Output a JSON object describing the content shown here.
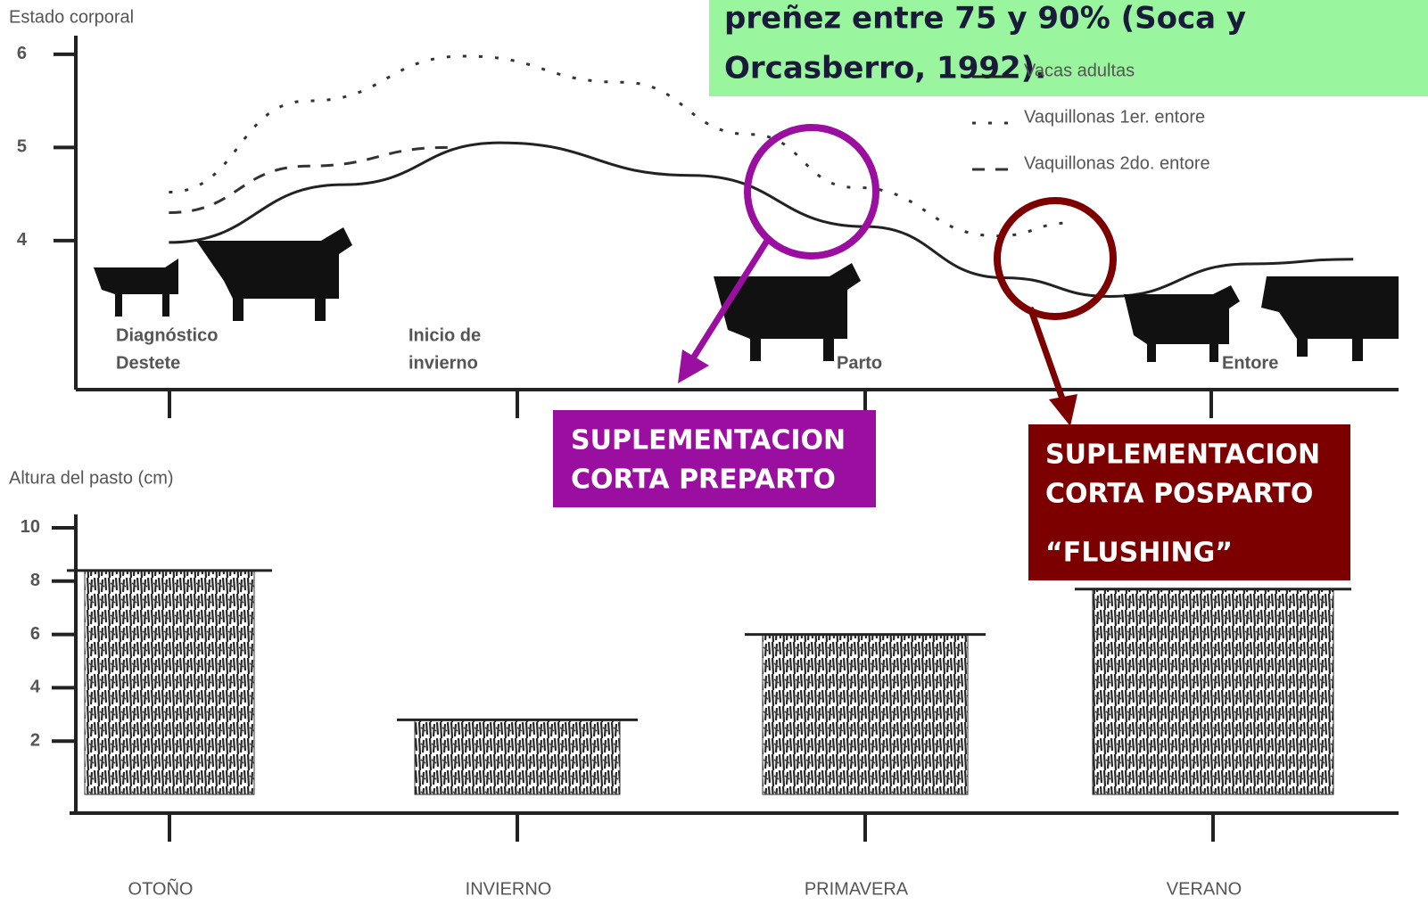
{
  "chart_data": [
    {
      "type": "line",
      "y_label": "Estado corporal",
      "xlim": [
        -0.28,
        3.53
      ],
      "ylim": [
        2.4,
        6.2
      ],
      "yticks": [
        4,
        5,
        6
      ],
      "event_labels": [
        [
          "Diagnóstico",
          "Destete"
        ],
        [
          "Inicio de",
          "invierno"
        ],
        [
          "Parto"
        ],
        [
          "Entore"
        ]
      ],
      "series": [
        {
          "name": "Vacas adultas",
          "color": "#222222",
          "style": "solid",
          "x": [
            0,
            0.5,
            0.95,
            1.5,
            2,
            2.4,
            2.7,
            3.1,
            3.4
          ],
          "values": [
            3.98,
            4.6,
            5.05,
            4.7,
            4.15,
            3.6,
            3.4,
            3.75,
            3.8
          ]
        },
        {
          "name": "Vaquillonas 1er. entore",
          "color": "#333333",
          "style": "dotted",
          "x": [
            0,
            0.4,
            0.85,
            1.3,
            1.67,
            1.97,
            2.38,
            2.59
          ],
          "values": [
            4.52,
            5.5,
            5.98,
            5.7,
            5.14,
            4.57,
            4.05,
            4.19
          ]
        },
        {
          "name": "Vaquillonas 2do. entore",
          "color": "#333333",
          "style": "dashed",
          "x": [
            0,
            0.4,
            0.8
          ],
          "values": [
            4.3,
            4.8,
            5.0
          ]
        }
      ],
      "annotations": {
        "note": [
          "preñez entre 75 y 90% (Soca y",
          "Orcasberro, 1992)."
        ],
        "preparto": [
          "SUPLEMENTACION",
          "CORTA PREPARTO"
        ],
        "posparto": [
          "SUPLEMENTACION",
          "CORTA POSPARTO",
          "“FLUSHING”"
        ]
      }
    },
    {
      "type": "bar",
      "y_label": "Altura del pasto (cm)",
      "categories": [
        "OTOÑO",
        "INVIERNO",
        "PRIMAVERA",
        "VERANO"
      ],
      "values": [
        8.4,
        2.8,
        6.0,
        7.7
      ],
      "color": "#222222",
      "ylim": [
        -0.7,
        10.5
      ],
      "yticks": [
        2,
        4,
        6,
        8,
        10
      ]
    }
  ]
}
